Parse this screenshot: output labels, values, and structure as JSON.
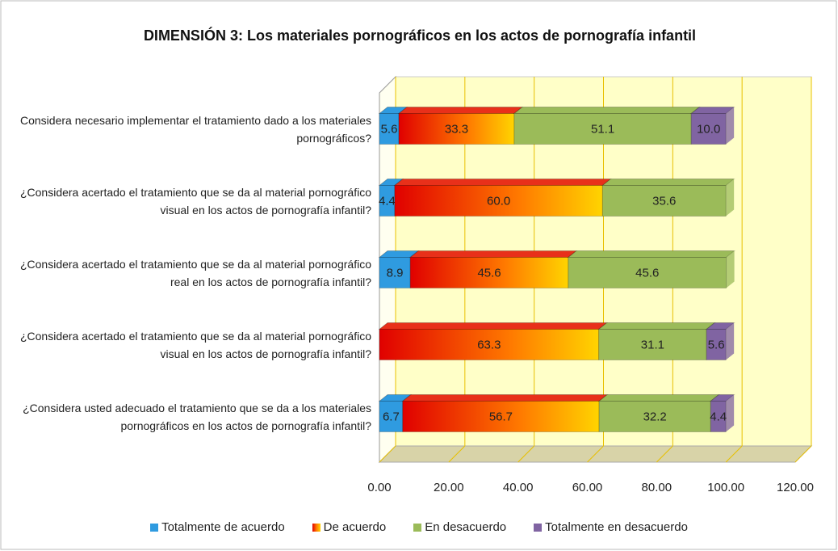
{
  "chart_data": {
    "type": "stacked-bar-horizontal",
    "title": "DIMENSIÓN 3: Los materiales pornográficos en los actos de pornografía infantil",
    "categories": [
      "Considera necesario implementar el tratamiento dado a los materiales pornográficos?",
      "¿Considera acertado el tratamiento que se da al material pornográfico visual en los actos de pornografía infantil?",
      "¿Considera acertado el tratamiento que se da al material pornográfico real en los actos de pornografía infantil?",
      "¿Considera acertado el tratamiento que se da al material pornográfico visual en los actos de pornografía infantil?",
      "¿Considera usted adecuado el tratamiento que se da a los materiales pornográficos en los actos de pornografía infantil?"
    ],
    "series": [
      {
        "name": "Totalmente de acuerdo",
        "color": "#2f9be0",
        "values": [
          5.6,
          4.4,
          8.9,
          null,
          6.7
        ],
        "value_labels": [
          "5.6",
          "4.4",
          "8.9",
          null,
          "6.7"
        ]
      },
      {
        "name": "De acuerdo",
        "color": "#e8301a",
        "values": [
          33.3,
          60.0,
          45.6,
          63.3,
          56.7
        ],
        "value_labels": [
          "33.3",
          "60.0",
          "45.6",
          "63.3",
          "56.7"
        ]
      },
      {
        "name": "En desacuerdo",
        "color": "#9bbb59",
        "values": [
          51.1,
          35.6,
          45.6,
          31.1,
          32.2
        ],
        "value_labels": [
          "51.1",
          "35.6",
          "45.6",
          "31.1",
          "32.2"
        ]
      },
      {
        "name": "Totalmente en desacuerdo",
        "color": "#8064a2",
        "values": [
          10.0,
          null,
          null,
          5.6,
          4.4
        ],
        "value_labels": [
          "10.0",
          null,
          null,
          "5.6",
          "4.4"
        ]
      }
    ],
    "xlim": [
      0,
      120
    ],
    "xticks": [
      {
        "value": 0,
        "label": "0.00"
      },
      {
        "value": 20,
        "label": "20.00"
      },
      {
        "value": 40,
        "label": "40.00"
      },
      {
        "value": 60,
        "label": "60.00"
      },
      {
        "value": 80,
        "label": "80.00"
      },
      {
        "value": 100,
        "label": "100.00"
      },
      {
        "value": 120,
        "label": "120.00"
      }
    ],
    "grid": true,
    "legend": "bottom"
  }
}
